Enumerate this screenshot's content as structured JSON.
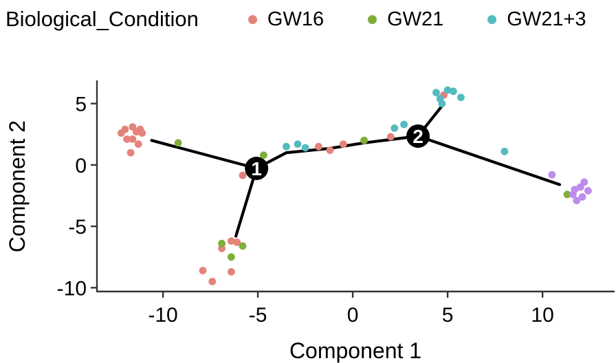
{
  "legend": {
    "title": "Biological_Condition",
    "items": [
      {
        "label": "GW16",
        "color": "#E4837B"
      },
      {
        "label": "GW21",
        "color": "#7FAE3B"
      },
      {
        "label": "GW21+3",
        "color": "#54BBC0"
      }
    ]
  },
  "chart_data": {
    "type": "scatter",
    "title": "",
    "xlabel": "Component 1",
    "ylabel": "Component 2",
    "xlim": [
      -13.48,
      13.8
    ],
    "ylim": [
      -10.31,
      6.83
    ],
    "x_ticks": [
      -10,
      -5,
      0,
      5,
      10
    ],
    "y_ticks": [
      5,
      0,
      -5,
      -10
    ],
    "grid": false,
    "legend_position": "top",
    "axis_color": "#333333",
    "point_radius": 5.4,
    "series": [
      {
        "name": "GW16",
        "color": "#E4837B",
        "points": [
          [
            -12.2,
            2.6
          ],
          [
            -12.0,
            2.9
          ],
          [
            -11.6,
            3.1
          ],
          [
            -11.4,
            2.7
          ],
          [
            -11.2,
            2.9
          ],
          [
            -11.1,
            2.6
          ],
          [
            -11.9,
            2.1
          ],
          [
            -11.6,
            2.1
          ],
          [
            -11.3,
            1.7
          ],
          [
            -11.7,
            1.0
          ],
          [
            -5.8,
            -0.85
          ],
          [
            -1.8,
            1.5
          ],
          [
            -1.2,
            1.2
          ],
          [
            -0.5,
            1.7
          ],
          [
            2.0,
            2.3
          ],
          [
            4.8,
            5.7
          ],
          [
            -6.4,
            -6.2
          ],
          [
            -6.1,
            -6.3
          ],
          [
            -6.9,
            -6.8
          ],
          [
            -7.9,
            -8.6
          ],
          [
            -6.4,
            -8.7
          ],
          [
            -7.4,
            -9.5
          ]
        ]
      },
      {
        "name": "GW21",
        "color": "#7FAE3B",
        "points": [
          [
            -9.2,
            1.8
          ],
          [
            -4.7,
            0.8
          ],
          [
            0.6,
            2.0
          ],
          [
            -6.9,
            -6.4
          ],
          [
            -5.8,
            -6.6
          ],
          [
            -6.4,
            -7.5
          ],
          [
            11.3,
            -2.4
          ]
        ]
      },
      {
        "name": "GW21+3",
        "color": "#54BBC0",
        "points": [
          [
            -3.5,
            1.5
          ],
          [
            -2.9,
            1.7
          ],
          [
            -2.5,
            1.4
          ],
          [
            2.2,
            3.0
          ],
          [
            2.7,
            3.3
          ],
          [
            4.4,
            5.9
          ],
          [
            4.6,
            5.4
          ],
          [
            5.0,
            6.1
          ],
          [
            5.3,
            6.0
          ],
          [
            5.7,
            5.5
          ],
          [
            4.7,
            5.0
          ],
          [
            8.0,
            1.1
          ]
        ]
      },
      {
        "name": "",
        "color": "#BE8CEC",
        "points": [
          [
            10.5,
            -0.8
          ],
          [
            12.2,
            -1.4
          ],
          [
            12.0,
            -1.8
          ],
          [
            11.7,
            -2.0
          ],
          [
            12.4,
            -2.1
          ],
          [
            11.6,
            -2.4
          ],
          [
            12.1,
            -2.6
          ],
          [
            11.8,
            -2.9
          ]
        ]
      }
    ],
    "trajectory": {
      "color": "#000000",
      "width": 4.2,
      "segments": [
        [
          [
            -10.6,
            2.0
          ],
          [
            -5.07,
            -0.28
          ]
        ],
        [
          [
            -5.07,
            -0.28
          ],
          [
            -6.16,
            -5.8
          ]
        ],
        [
          [
            -5.07,
            -0.28
          ],
          [
            -3.5,
            1.0
          ],
          [
            -1.2,
            1.35
          ],
          [
            0.6,
            1.8
          ],
          [
            3.44,
            2.35
          ]
        ],
        [
          [
            3.44,
            2.35
          ],
          [
            4.7,
            4.8
          ]
        ],
        [
          [
            3.44,
            2.35
          ],
          [
            10.9,
            -1.6
          ]
        ]
      ],
      "nodes": [
        {
          "label": "1",
          "x": -5.07,
          "y": -0.28
        },
        {
          "label": "2",
          "x": 3.44,
          "y": 2.35
        }
      ]
    }
  }
}
